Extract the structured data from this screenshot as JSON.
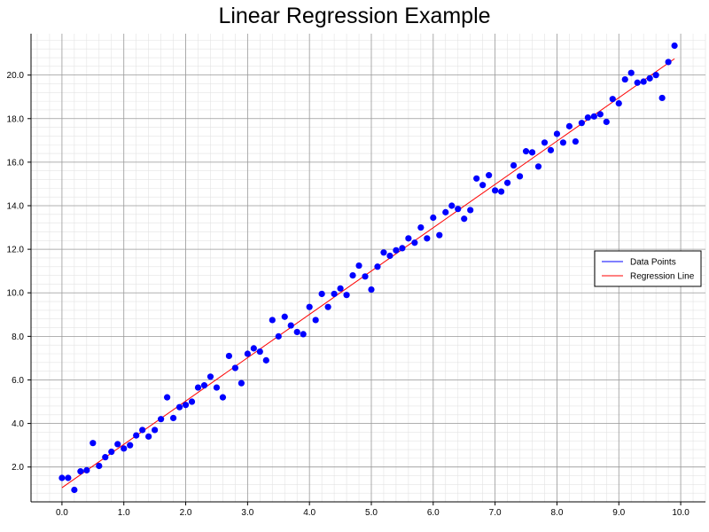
{
  "chart_data": {
    "type": "scatter",
    "title": "Linear Regression Example",
    "xlabel": "",
    "ylabel": "",
    "xlim": [
      -0.5,
      10.4
    ],
    "ylim": [
      0.4,
      21.9
    ],
    "x_ticks": [
      0.0,
      1.0,
      2.0,
      3.0,
      4.0,
      5.0,
      6.0,
      7.0,
      8.0,
      9.0,
      10.0
    ],
    "x_tick_labels": [
      "0.0",
      "1.0",
      "2.0",
      "3.0",
      "4.0",
      "5.0",
      "6.0",
      "7.0",
      "8.0",
      "9.0",
      "10.0"
    ],
    "y_ticks": [
      2.0,
      4.0,
      6.0,
      8.0,
      10.0,
      12.0,
      14.0,
      16.0,
      18.0,
      20.0
    ],
    "y_tick_labels": [
      "2.0",
      "4.0",
      "6.0",
      "8.0",
      "10.0",
      "12.0",
      "14.0",
      "16.0",
      "18.0",
      "20.0"
    ],
    "grid": true,
    "minor_grid": true,
    "legend_position": "right",
    "series": [
      {
        "name": "Data Points",
        "kind": "scatter",
        "color": "#0000ff",
        "x": [
          0.0,
          0.1,
          0.2,
          0.3,
          0.4,
          0.5,
          0.6,
          0.7,
          0.8,
          0.9,
          1.0,
          1.1,
          1.2,
          1.3,
          1.4,
          1.5,
          1.6,
          1.7,
          1.8,
          1.9,
          2.0,
          2.1,
          2.2,
          2.3,
          2.4,
          2.5,
          2.6,
          2.7,
          2.8,
          2.9,
          3.0,
          3.1,
          3.2,
          3.3,
          3.4,
          3.5,
          3.6,
          3.7,
          3.8,
          3.9,
          4.0,
          4.1,
          4.2,
          4.3,
          4.4,
          4.5,
          4.6,
          4.7,
          4.8,
          4.9,
          5.0,
          5.1,
          5.2,
          5.3,
          5.4,
          5.5,
          5.6,
          5.7,
          5.8,
          5.9,
          6.0,
          6.1,
          6.2,
          6.3,
          6.4,
          6.5,
          6.6,
          6.7,
          6.8,
          6.9,
          7.0,
          7.1,
          7.2,
          7.3,
          7.4,
          7.5,
          7.6,
          7.7,
          7.8,
          7.9,
          8.0,
          8.1,
          8.2,
          8.3,
          8.4,
          8.5,
          8.6,
          8.7,
          8.8,
          8.9,
          9.0,
          9.1,
          9.2,
          9.3,
          9.4,
          9.5,
          9.6,
          9.7,
          9.8,
          9.9
        ],
        "y": [
          1.5,
          1.5,
          0.95,
          1.8,
          1.85,
          3.1,
          2.05,
          2.45,
          2.7,
          3.05,
          2.85,
          3.0,
          3.45,
          3.7,
          3.4,
          3.7,
          4.2,
          5.2,
          4.25,
          4.75,
          4.85,
          5.0,
          5.65,
          5.75,
          6.15,
          5.65,
          5.2,
          7.1,
          6.55,
          5.85,
          7.2,
          7.45,
          7.3,
          6.9,
          8.75,
          8.0,
          8.9,
          8.5,
          8.2,
          8.1,
          9.35,
          8.75,
          9.95,
          9.35,
          9.95,
          10.2,
          9.9,
          10.8,
          11.25,
          10.75,
          10.15,
          11.2,
          11.85,
          11.7,
          11.95,
          12.05,
          12.5,
          12.3,
          13.0,
          12.5,
          13.45,
          12.65,
          13.7,
          14.0,
          13.85,
          13.4,
          13.8,
          15.25,
          14.95,
          15.4,
          14.7,
          14.65,
          15.05,
          15.85,
          15.35,
          16.5,
          16.45,
          15.8,
          16.9,
          16.55,
          17.3,
          16.9,
          17.65,
          16.95,
          17.8,
          18.05,
          18.1,
          18.2,
          17.85,
          18.9,
          18.7,
          19.8,
          20.1,
          19.65,
          19.7,
          19.85,
          20.0,
          18.95,
          20.6,
          21.35
        ]
      },
      {
        "name": "Regression Line",
        "kind": "line",
        "color": "#ff0000",
        "x": [
          0.0,
          9.9
        ],
        "y": [
          1.05,
          20.75
        ]
      }
    ]
  }
}
